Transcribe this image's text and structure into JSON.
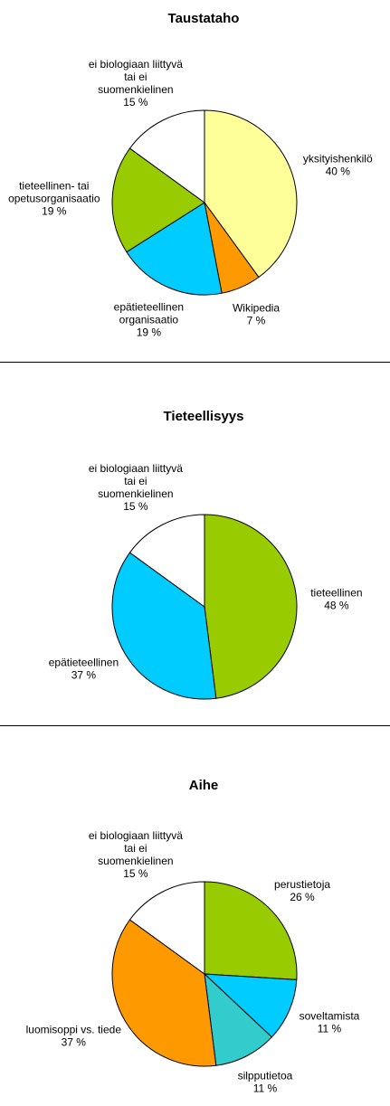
{
  "chart_data": [
    {
      "type": "pie",
      "title": "Taustataho",
      "categories": [
        "yksityishenkilö",
        "Wikipedia",
        "epätieteellinen\norganisaatio",
        "tieteellinen- tai\nopetusorganisaatio",
        "ei biologiaan liittyvä\ntai ei\nsuomenkielinen"
      ],
      "values": [
        40,
        7,
        19,
        19,
        15
      ],
      "value_labels": [
        "40 %",
        "7 %",
        "19 %",
        "19 %",
        "15 %"
      ],
      "colors": [
        "#ffff99",
        "#ff9900",
        "#00ccff",
        "#99cc00",
        "#ffffff"
      ]
    },
    {
      "type": "pie",
      "title": "Tieteellisyys",
      "categories": [
        "tieteellinen",
        "epätieteellinen",
        "ei biologiaan liittyvä\ntai ei\nsuomenkielinen"
      ],
      "values": [
        48,
        37,
        15
      ],
      "value_labels": [
        "48 %",
        "37 %",
        "15 %"
      ],
      "colors": [
        "#99cc00",
        "#00ccff",
        "#ffffff"
      ]
    },
    {
      "type": "pie",
      "title": "Aihe",
      "categories": [
        "perustietoja",
        "soveltamista",
        "silpputietoa",
        "luomisoppi vs. tiede",
        "ei biologiaan liittyvä\ntai ei\nsuomenkielinen"
      ],
      "values": [
        26,
        11,
        11,
        37,
        15
      ],
      "value_labels": [
        "26 %",
        "11 %",
        "11 %",
        "37 %",
        "15 %"
      ],
      "colors": [
        "#99cc00",
        "#00ccff",
        "#33cccc",
        "#ff9900",
        "#ffffff"
      ]
    }
  ]
}
